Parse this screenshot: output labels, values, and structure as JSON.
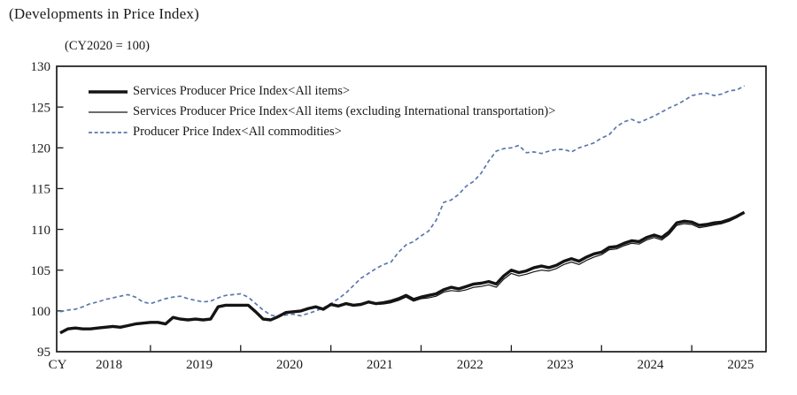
{
  "header": {
    "title": "(Developments in Price Index)"
  },
  "chart_data": {
    "type": "line",
    "title": "(Developments in Price Index)",
    "subtitle": "(CY2020 = 100)",
    "grid": false,
    "legend_position": "top-left-inside",
    "x_axis": {
      "prefix_label": "CY",
      "year_labels": [
        "2018",
        "2019",
        "2020",
        "2021",
        "2022",
        "2023",
        "2024",
        "2025"
      ],
      "frequency": "monthly",
      "start_month": "2018-01",
      "end_month": "2025-08"
    },
    "y_axis": {
      "min": 95,
      "max": 130,
      "step": 5,
      "ticks": [
        95,
        100,
        105,
        110,
        115,
        120,
        125,
        130
      ]
    },
    "colors": {
      "black_line": "#141414",
      "dashed_line": "#5c77ae",
      "frame": "#1a1a1a"
    },
    "series": [
      {
        "name": "Services Producer Price Index<All items>",
        "style": "thick-solid",
        "color": "#141414",
        "values": [
          97.3,
          97.8,
          97.9,
          97.8,
          97.8,
          97.9,
          98.0,
          98.1,
          98.0,
          98.2,
          98.4,
          98.5,
          98.6,
          98.6,
          98.4,
          99.2,
          99.0,
          98.9,
          99.0,
          98.9,
          99.0,
          100.5,
          100.7,
          100.7,
          100.7,
          100.7,
          99.9,
          99.0,
          98.9,
          99.3,
          99.8,
          99.9,
          100.0,
          100.3,
          100.5,
          100.2,
          100.8,
          100.6,
          100.9,
          100.7,
          100.8,
          101.1,
          100.9,
          101.0,
          101.2,
          101.5,
          101.9,
          101.4,
          101.7,
          101.9,
          102.1,
          102.6,
          102.9,
          102.7,
          103.0,
          103.3,
          103.4,
          103.6,
          103.3,
          104.3,
          105.0,
          104.7,
          104.9,
          105.3,
          105.5,
          105.3,
          105.6,
          106.1,
          106.4,
          106.1,
          106.6,
          107.0,
          107.2,
          107.8,
          107.9,
          108.3,
          108.6,
          108.5,
          109.0,
          109.3,
          109.0,
          109.7,
          110.8,
          111.0,
          110.9,
          110.5,
          110.6,
          110.8,
          110.9,
          111.2,
          111.6,
          112.1
        ]
      },
      {
        "name": "Services Producer Price Index<All items (excluding International transportation)>",
        "style": "thin-solid",
        "color": "#141414",
        "values": [
          97.3,
          97.8,
          97.9,
          97.8,
          97.8,
          97.9,
          98.0,
          98.1,
          98.0,
          98.2,
          98.4,
          98.5,
          98.6,
          98.6,
          98.4,
          99.2,
          99.0,
          98.9,
          99.0,
          98.9,
          99.0,
          100.5,
          100.7,
          100.7,
          100.7,
          100.7,
          99.9,
          99.0,
          98.9,
          99.3,
          99.8,
          99.9,
          100.0,
          100.3,
          100.5,
          100.2,
          100.8,
          100.6,
          100.9,
          100.7,
          100.75,
          101.0,
          100.8,
          100.85,
          101.0,
          101.3,
          101.7,
          101.2,
          101.5,
          101.6,
          101.8,
          102.3,
          102.5,
          102.4,
          102.6,
          102.9,
          103.0,
          103.2,
          102.9,
          103.9,
          104.6,
          104.3,
          104.5,
          104.8,
          105.0,
          104.9,
          105.2,
          105.7,
          106.0,
          105.7,
          106.2,
          106.6,
          106.9,
          107.5,
          107.6,
          108.0,
          108.3,
          108.2,
          108.7,
          109.0,
          108.7,
          109.4,
          110.5,
          110.7,
          110.6,
          110.2,
          110.35,
          110.55,
          110.7,
          111.0,
          111.45,
          112.0
        ]
      },
      {
        "name": "Producer Price Index<All commodities>",
        "style": "dashed",
        "color": "#5c77ae",
        "values": [
          99.9,
          100.1,
          100.2,
          100.5,
          100.9,
          101.1,
          101.4,
          101.6,
          101.8,
          102.0,
          101.7,
          101.1,
          100.9,
          101.2,
          101.5,
          101.7,
          101.8,
          101.5,
          101.3,
          101.1,
          101.2,
          101.6,
          101.9,
          102.0,
          102.1,
          101.7,
          100.9,
          100.1,
          99.5,
          99.3,
          99.5,
          99.6,
          99.4,
          99.7,
          100.0,
          100.4,
          100.9,
          101.5,
          102.2,
          103.1,
          104.0,
          104.6,
          105.2,
          105.7,
          106.0,
          107.2,
          108.1,
          108.5,
          109.2,
          109.8,
          111.1,
          113.3,
          113.6,
          114.3,
          115.3,
          115.9,
          116.9,
          118.4,
          119.6,
          119.9,
          120.0,
          120.3,
          119.4,
          119.5,
          119.3,
          119.6,
          119.8,
          119.8,
          119.5,
          120.0,
          120.3,
          120.6,
          121.2,
          121.6,
          122.6,
          123.2,
          123.5,
          123.1,
          123.5,
          123.9,
          124.4,
          124.9,
          125.3,
          125.8,
          126.4,
          126.6,
          126.7,
          126.4,
          126.6,
          127.0,
          127.1,
          127.6
        ]
      }
    ]
  }
}
